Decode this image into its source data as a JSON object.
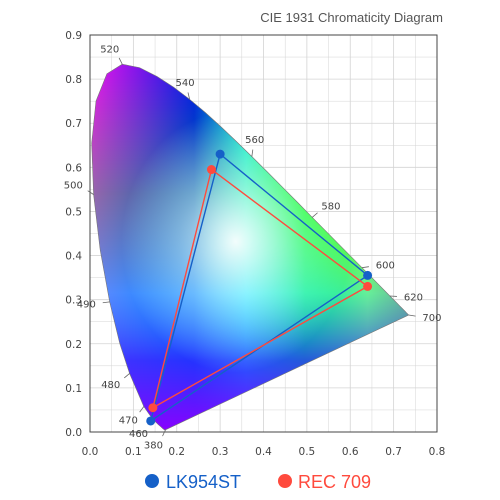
{
  "chart_data": {
    "type": "scatter",
    "title": "CIE 1931 Chromaticity Diagram",
    "xlim": [
      0,
      0.8
    ],
    "ylim": [
      0,
      0.9
    ],
    "x_ticks": [
      "0.0",
      "0.1",
      "0.2",
      "0.3",
      "0.4",
      "0.5",
      "0.6",
      "0.7",
      "0.8"
    ],
    "y_ticks": [
      "0.0",
      "0.1",
      "0.2",
      "0.3",
      "0.4",
      "0.5",
      "0.6",
      "0.7",
      "0.8",
      "0.9"
    ],
    "grid": true,
    "legend_position": "bottom",
    "spectral_locus": [
      [
        0.1741,
        0.005
      ],
      [
        0.1738,
        0.0049
      ],
      [
        0.1721,
        0.0048
      ],
      [
        0.1689,
        0.0069
      ],
      [
        0.1644,
        0.0109
      ],
      [
        0.1566,
        0.0177
      ],
      [
        0.144,
        0.0297
      ],
      [
        0.1241,
        0.0578
      ],
      [
        0.0913,
        0.1327
      ],
      [
        0.0687,
        0.2007
      ],
      [
        0.0454,
        0.295
      ],
      [
        0.0235,
        0.4127
      ],
      [
        0.0082,
        0.5384
      ],
      [
        0.0039,
        0.6548
      ],
      [
        0.0139,
        0.7502
      ],
      [
        0.0389,
        0.812
      ],
      [
        0.0743,
        0.8338
      ],
      [
        0.1142,
        0.8262
      ],
      [
        0.1547,
        0.8059
      ],
      [
        0.1929,
        0.7816
      ],
      [
        0.2296,
        0.7543
      ],
      [
        0.2658,
        0.7243
      ],
      [
        0.3016,
        0.6923
      ],
      [
        0.3373,
        0.6589
      ],
      [
        0.3731,
        0.6245
      ],
      [
        0.4087,
        0.5896
      ],
      [
        0.4441,
        0.5547
      ],
      [
        0.4788,
        0.5202
      ],
      [
        0.5125,
        0.4866
      ],
      [
        0.5448,
        0.4544
      ],
      [
        0.5752,
        0.4242
      ],
      [
        0.6029,
        0.3965
      ],
      [
        0.627,
        0.3725
      ],
      [
        0.6482,
        0.3514
      ],
      [
        0.6658,
        0.334
      ],
      [
        0.6801,
        0.3197
      ],
      [
        0.6915,
        0.3083
      ],
      [
        0.7006,
        0.2993
      ],
      [
        0.7079,
        0.292
      ],
      [
        0.714,
        0.2859
      ],
      [
        0.719,
        0.2809
      ],
      [
        0.723,
        0.277
      ],
      [
        0.726,
        0.274
      ],
      [
        0.7283,
        0.2717
      ],
      [
        0.73,
        0.27
      ],
      [
        0.7347,
        0.2653
      ]
    ],
    "wavelength_labels": [
      {
        "label": "380",
        "x": 0.1741,
        "y": 0.005
      },
      {
        "label": "460",
        "x": 0.144,
        "y": 0.0297
      },
      {
        "label": "470",
        "x": 0.1241,
        "y": 0.0578
      },
      {
        "label": "480",
        "x": 0.0913,
        "y": 0.1327
      },
      {
        "label": "490",
        "x": 0.0454,
        "y": 0.295
      },
      {
        "label": "500",
        "x": 0.0082,
        "y": 0.5384
      },
      {
        "label": "520",
        "x": 0.0743,
        "y": 0.8338
      },
      {
        "label": "540",
        "x": 0.2296,
        "y": 0.7543
      },
      {
        "label": "560",
        "x": 0.3731,
        "y": 0.6245
      },
      {
        "label": "580",
        "x": 0.5125,
        "y": 0.4866
      },
      {
        "label": "600",
        "x": 0.627,
        "y": 0.3725
      },
      {
        "label": "620",
        "x": 0.6915,
        "y": 0.3083
      },
      {
        "label": "700",
        "x": 0.7347,
        "y": 0.2653
      }
    ],
    "series": [
      {
        "name": "LK954ST",
        "color": "#1560c8",
        "points": [
          [
            0.64,
            0.355
          ],
          [
            0.3,
            0.63
          ],
          [
            0.14,
            0.025
          ]
        ]
      },
      {
        "name": "REC 709",
        "color": "#ff4a3d",
        "points": [
          [
            0.64,
            0.33
          ],
          [
            0.28,
            0.595
          ],
          [
            0.145,
            0.055
          ]
        ]
      }
    ]
  }
}
